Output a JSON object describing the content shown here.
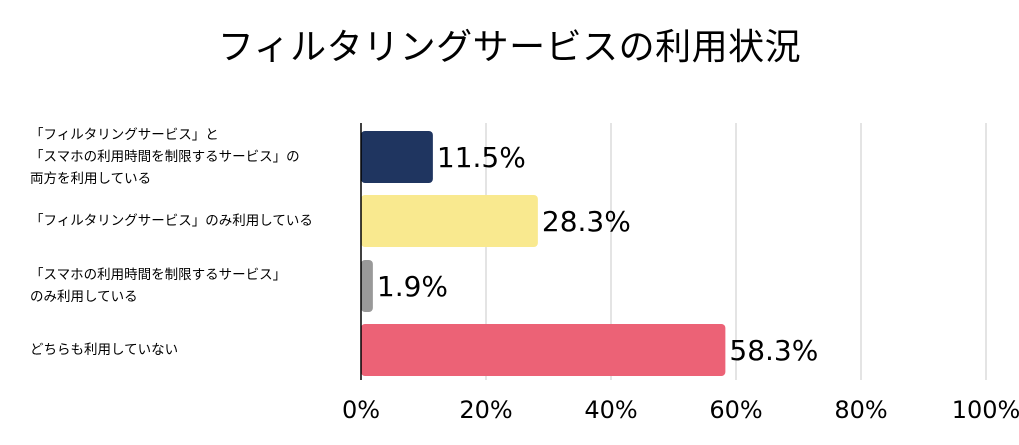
{
  "chart_data": {
    "type": "bar",
    "orientation": "horizontal",
    "title": "フィルタリングサービスの利用状況",
    "categories": [
      [
        "「フィルタリングサービス」と",
        "「スマホの利用時間を制限するサービス」の",
        "両方を利用している"
      ],
      [
        "「フィルタリングサービス」のみ利用している"
      ],
      [
        "「スマホの利用時間を制限するサービス」",
        "のみ利用している"
      ],
      [
        "どちらも利用していない"
      ]
    ],
    "values": [
      11.5,
      28.3,
      1.9,
      58.3
    ],
    "value_labels": [
      "11.5%",
      "28.3%",
      "1.9%",
      "58.3%"
    ],
    "bar_colors": [
      "#1f3560",
      "#f9e98f",
      "#999999",
      "#ec6276"
    ],
    "xlim": [
      0,
      100
    ],
    "x_ticks": [
      0,
      20,
      40,
      60,
      80,
      100
    ],
    "x_tick_labels": [
      "0%",
      "20%",
      "40%",
      "60%",
      "80%",
      "100%"
    ],
    "grid": "vertical",
    "legend": "none"
  }
}
